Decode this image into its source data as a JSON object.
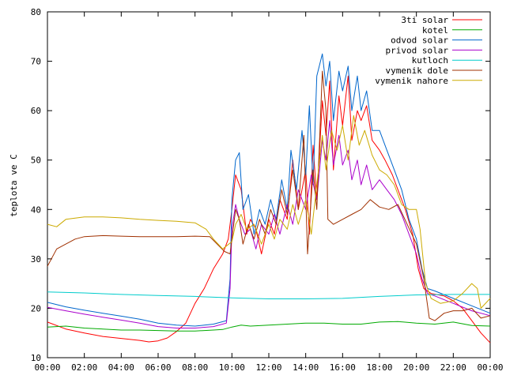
{
  "chart_data": {
    "type": "line",
    "title": "",
    "xlabel": "",
    "ylabel": "teplota ve C",
    "xlim": [
      "00:00",
      "24:00"
    ],
    "ylim": [
      10,
      80
    ],
    "grid": false,
    "legend_position": "top-right",
    "x_ticks": [
      "00:00",
      "02:00",
      "04:00",
      "06:00",
      "08:00",
      "10:00",
      "12:00",
      "14:00",
      "16:00",
      "18:00",
      "20:00",
      "22:00",
      "00:00"
    ],
    "x_tick_hours": [
      0,
      2,
      4,
      6,
      8,
      10,
      12,
      14,
      16,
      18,
      20,
      22,
      24
    ],
    "y_ticks": [
      10,
      20,
      30,
      40,
      50,
      60,
      70,
      80
    ],
    "series": [
      {
        "name": "3ti solar",
        "color": "#ff0000",
        "points": [
          [
            0,
            17.2
          ],
          [
            1,
            15.8
          ],
          [
            2,
            15
          ],
          [
            3,
            14.3
          ],
          [
            4,
            13.9
          ],
          [
            5,
            13.5
          ],
          [
            5.5,
            13.2
          ],
          [
            6,
            13.4
          ],
          [
            6.5,
            14
          ],
          [
            7,
            15.3
          ],
          [
            7.5,
            17
          ],
          [
            8,
            21
          ],
          [
            8.5,
            24
          ],
          [
            9,
            28
          ],
          [
            9.5,
            31
          ],
          [
            9.8,
            34
          ],
          [
            10,
            40
          ],
          [
            10.2,
            47
          ],
          [
            10.5,
            44
          ],
          [
            10.8,
            35
          ],
          [
            11,
            38
          ],
          [
            11.3,
            36
          ],
          [
            11.6,
            31
          ],
          [
            12,
            38
          ],
          [
            12.3,
            35
          ],
          [
            12.6,
            42
          ],
          [
            13,
            38
          ],
          [
            13.3,
            50
          ],
          [
            13.6,
            40
          ],
          [
            14,
            48
          ],
          [
            14.2,
            35
          ],
          [
            14.4,
            53
          ],
          [
            14.6,
            42
          ],
          [
            14.9,
            62
          ],
          [
            15.1,
            55
          ],
          [
            15.3,
            66
          ],
          [
            15.5,
            48
          ],
          [
            15.8,
            63
          ],
          [
            16,
            57
          ],
          [
            16.3,
            67
          ],
          [
            16.5,
            54
          ],
          [
            16.8,
            60
          ],
          [
            17,
            58
          ],
          [
            17.3,
            61
          ],
          [
            17.6,
            54
          ],
          [
            18,
            52
          ],
          [
            18.3,
            50
          ],
          [
            18.7,
            47
          ],
          [
            19,
            44
          ],
          [
            19.4,
            40
          ],
          [
            19.8,
            35
          ],
          [
            20.1,
            28
          ],
          [
            20.4,
            24
          ],
          [
            20.8,
            23
          ],
          [
            21.5,
            22.5
          ],
          [
            22,
            21.5
          ],
          [
            22.5,
            20
          ],
          [
            23,
            17.5
          ],
          [
            23.5,
            15
          ],
          [
            24,
            13
          ]
        ]
      },
      {
        "name": "kotel",
        "color": "#00aa00",
        "points": [
          [
            0,
            16.2
          ],
          [
            1,
            16.4
          ],
          [
            2,
            16
          ],
          [
            3,
            15.8
          ],
          [
            4,
            15.6
          ],
          [
            5,
            15.6
          ],
          [
            6,
            15.5
          ],
          [
            7,
            15.4
          ],
          [
            8,
            15.4
          ],
          [
            9,
            15.6
          ],
          [
            9.5,
            15.7
          ],
          [
            10,
            16.2
          ],
          [
            10.5,
            16.6
          ],
          [
            11,
            16.4
          ],
          [
            12,
            16.6
          ],
          [
            13,
            16.8
          ],
          [
            14,
            17
          ],
          [
            15,
            17
          ],
          [
            16,
            16.8
          ],
          [
            17,
            16.8
          ],
          [
            18,
            17.2
          ],
          [
            19,
            17.3
          ],
          [
            20,
            17
          ],
          [
            21,
            16.8
          ],
          [
            22,
            17.2
          ],
          [
            23,
            16.5
          ],
          [
            24,
            16.4
          ]
        ]
      },
      {
        "name": "odvod solar",
        "color": "#0066cc",
        "points": [
          [
            0,
            21.2
          ],
          [
            1,
            20.3
          ],
          [
            2,
            19.6
          ],
          [
            3,
            19
          ],
          [
            4,
            18.4
          ],
          [
            5,
            17.8
          ],
          [
            6,
            17
          ],
          [
            7,
            16.6
          ],
          [
            8,
            16.4
          ],
          [
            9,
            16.8
          ],
          [
            9.7,
            17.5
          ],
          [
            9.9,
            26
          ],
          [
            10,
            42
          ],
          [
            10.2,
            50
          ],
          [
            10.4,
            51.5
          ],
          [
            10.6,
            40
          ],
          [
            10.9,
            43
          ],
          [
            11.2,
            35
          ],
          [
            11.5,
            40
          ],
          [
            11.8,
            37
          ],
          [
            12.1,
            42
          ],
          [
            12.4,
            38
          ],
          [
            12.7,
            46
          ],
          [
            13,
            40
          ],
          [
            13.2,
            52
          ],
          [
            13.5,
            44
          ],
          [
            13.8,
            56
          ],
          [
            14,
            47
          ],
          [
            14.2,
            61
          ],
          [
            14.4,
            45
          ],
          [
            14.6,
            67
          ],
          [
            14.9,
            71.5
          ],
          [
            15.1,
            65
          ],
          [
            15.3,
            70
          ],
          [
            15.5,
            58
          ],
          [
            15.8,
            68
          ],
          [
            16,
            64
          ],
          [
            16.3,
            69
          ],
          [
            16.5,
            60
          ],
          [
            16.8,
            67
          ],
          [
            17,
            60
          ],
          [
            17.3,
            64
          ],
          [
            17.6,
            56
          ],
          [
            18,
            56
          ],
          [
            18.4,
            52
          ],
          [
            18.8,
            48
          ],
          [
            19.2,
            44
          ],
          [
            19.6,
            38
          ],
          [
            20,
            34
          ],
          [
            20.3,
            28
          ],
          [
            20.6,
            24
          ],
          [
            21,
            23.5
          ],
          [
            22,
            22
          ],
          [
            23,
            20.5
          ],
          [
            24,
            19
          ]
        ]
      },
      {
        "name": "privod solar",
        "color": "#aa00cc",
        "points": [
          [
            0,
            20.2
          ],
          [
            1,
            19.5
          ],
          [
            2,
            18.8
          ],
          [
            3,
            18.2
          ],
          [
            4,
            17.6
          ],
          [
            5,
            17
          ],
          [
            6,
            16.3
          ],
          [
            7,
            16
          ],
          [
            8,
            16
          ],
          [
            9,
            16.3
          ],
          [
            9.7,
            17
          ],
          [
            9.9,
            24
          ],
          [
            10,
            36
          ],
          [
            10.2,
            41
          ],
          [
            10.4,
            38
          ],
          [
            10.7,
            35
          ],
          [
            11,
            36
          ],
          [
            11.3,
            32
          ],
          [
            11.6,
            37
          ],
          [
            12,
            35
          ],
          [
            12.3,
            39
          ],
          [
            12.6,
            35
          ],
          [
            13,
            41
          ],
          [
            13.3,
            37
          ],
          [
            13.6,
            44
          ],
          [
            14,
            40
          ],
          [
            14.3,
            47
          ],
          [
            14.6,
            42
          ],
          [
            14.9,
            54
          ],
          [
            15.1,
            50
          ],
          [
            15.3,
            58
          ],
          [
            15.5,
            49
          ],
          [
            15.8,
            55
          ],
          [
            16,
            49
          ],
          [
            16.3,
            52
          ],
          [
            16.5,
            46
          ],
          [
            16.8,
            50
          ],
          [
            17,
            45
          ],
          [
            17.3,
            49
          ],
          [
            17.6,
            44
          ],
          [
            18,
            46
          ],
          [
            18.4,
            44
          ],
          [
            18.8,
            42
          ],
          [
            19.2,
            39
          ],
          [
            19.6,
            35
          ],
          [
            20,
            31
          ],
          [
            20.3,
            26
          ],
          [
            20.6,
            23
          ],
          [
            21,
            22.5
          ],
          [
            22,
            21
          ],
          [
            23,
            19.5
          ],
          [
            24,
            18.5
          ]
        ]
      },
      {
        "name": "kutloch",
        "color": "#00cccc",
        "points": [
          [
            0,
            23.3
          ],
          [
            2,
            23.1
          ],
          [
            4,
            22.8
          ],
          [
            6,
            22.6
          ],
          [
            8,
            22.4
          ],
          [
            10,
            22.1
          ],
          [
            12,
            21.9
          ],
          [
            14,
            21.9
          ],
          [
            16,
            22
          ],
          [
            18,
            22.4
          ],
          [
            20,
            22.7
          ],
          [
            22,
            22.8
          ],
          [
            24,
            22.8
          ]
        ]
      },
      {
        "name": "vymenik dole",
        "color": "#a03000",
        "points": [
          [
            0,
            28.5
          ],
          [
            0.5,
            32
          ],
          [
            1,
            33
          ],
          [
            1.5,
            34
          ],
          [
            2,
            34.5
          ],
          [
            3,
            34.7
          ],
          [
            4,
            34.6
          ],
          [
            5,
            34.5
          ],
          [
            6,
            34.5
          ],
          [
            7,
            34.5
          ],
          [
            8,
            34.6
          ],
          [
            8.8,
            34.5
          ],
          [
            9.2,
            33
          ],
          [
            9.6,
            31.5
          ],
          [
            9.9,
            31
          ],
          [
            10,
            34
          ],
          [
            10.2,
            40
          ],
          [
            10.4,
            38
          ],
          [
            10.6,
            33
          ],
          [
            10.9,
            37
          ],
          [
            11.2,
            34
          ],
          [
            11.5,
            38
          ],
          [
            11.8,
            35
          ],
          [
            12.1,
            40
          ],
          [
            12.4,
            37
          ],
          [
            12.7,
            44
          ],
          [
            13,
            39
          ],
          [
            13.3,
            48
          ],
          [
            13.6,
            40
          ],
          [
            13.9,
            55
          ],
          [
            14.1,
            31
          ],
          [
            14.4,
            48
          ],
          [
            14.6,
            40
          ],
          [
            14.9,
            68
          ],
          [
            15.1,
            60
          ],
          [
            15.2,
            38
          ],
          [
            15.5,
            37
          ],
          [
            16,
            38
          ],
          [
            16.5,
            39
          ],
          [
            17,
            40
          ],
          [
            17.5,
            42
          ],
          [
            18,
            40.5
          ],
          [
            18.5,
            40
          ],
          [
            19,
            41
          ],
          [
            19.5,
            37
          ],
          [
            20,
            33
          ],
          [
            20.4,
            26
          ],
          [
            20.7,
            18
          ],
          [
            21,
            17.5
          ],
          [
            21.5,
            19
          ],
          [
            22,
            19.5
          ],
          [
            22.5,
            19.5
          ],
          [
            23,
            20
          ],
          [
            23.5,
            18
          ],
          [
            24,
            18.5
          ]
        ]
      },
      {
        "name": "vymenik nahore",
        "color": "#ccaa00",
        "points": [
          [
            0,
            37
          ],
          [
            0.5,
            36.5
          ],
          [
            1,
            38
          ],
          [
            2,
            38.5
          ],
          [
            3,
            38.5
          ],
          [
            4,
            38.3
          ],
          [
            5,
            38
          ],
          [
            6,
            37.8
          ],
          [
            7,
            37.6
          ],
          [
            8,
            37.3
          ],
          [
            8.6,
            36
          ],
          [
            9,
            34
          ],
          [
            9.5,
            32
          ],
          [
            10,
            33.5
          ],
          [
            10.2,
            37
          ],
          [
            10.5,
            39
          ],
          [
            10.8,
            36
          ],
          [
            11.2,
            37
          ],
          [
            11.6,
            33
          ],
          [
            12,
            37
          ],
          [
            12.3,
            34
          ],
          [
            12.6,
            38
          ],
          [
            13,
            36
          ],
          [
            13.3,
            41
          ],
          [
            13.6,
            37
          ],
          [
            14,
            42
          ],
          [
            14.3,
            35
          ],
          [
            14.6,
            45
          ],
          [
            14.9,
            55
          ],
          [
            15.1,
            48
          ],
          [
            15.4,
            56
          ],
          [
            15.7,
            52
          ],
          [
            16,
            57
          ],
          [
            16.3,
            50
          ],
          [
            16.6,
            59
          ],
          [
            16.9,
            53
          ],
          [
            17.2,
            56
          ],
          [
            17.6,
            51
          ],
          [
            18,
            48
          ],
          [
            18.4,
            47
          ],
          [
            18.8,
            45
          ],
          [
            19.2,
            41
          ],
          [
            19.6,
            40
          ],
          [
            20,
            40
          ],
          [
            20.2,
            36
          ],
          [
            20.5,
            25
          ],
          [
            20.8,
            22
          ],
          [
            21.3,
            21
          ],
          [
            22,
            21.5
          ],
          [
            22.5,
            23
          ],
          [
            23,
            25
          ],
          [
            23.3,
            24
          ],
          [
            23.5,
            20
          ],
          [
            24,
            22
          ]
        ]
      }
    ]
  }
}
